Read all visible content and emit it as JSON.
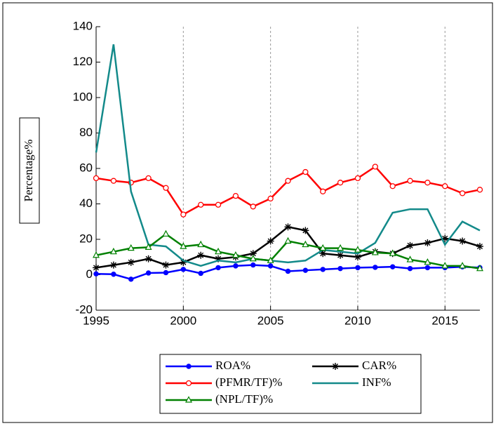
{
  "chart_data": {
    "type": "line",
    "y_label": "Percentage%",
    "x": [
      1995,
      1996,
      1997,
      1998,
      1999,
      2000,
      2001,
      2002,
      2003,
      2004,
      2005,
      2006,
      2007,
      2008,
      2009,
      2010,
      2011,
      2012,
      2013,
      2014,
      2015,
      2016,
      2017
    ],
    "xlim": [
      1995,
      2017
    ],
    "xticks": [
      1995,
      2000,
      2005,
      2010,
      2015
    ],
    "ylim": [
      -20,
      140
    ],
    "yticks": [
      -20,
      0,
      20,
      40,
      60,
      80,
      100,
      120,
      140
    ],
    "grid": "x-dotted",
    "legend": "bottom",
    "series": [
      {
        "name": "ROA%",
        "color": "#0000ff",
        "marker": "filled-circle",
        "values": [
          0.5,
          0.3,
          -2.5,
          1,
          1.2,
          3,
          0.8,
          4,
          5,
          5.5,
          5,
          2,
          2.5,
          3,
          3.5,
          4,
          4.2,
          4.5,
          3.5,
          4,
          4,
          4.5,
          4
        ]
      },
      {
        "name": "CAR%",
        "color": "#000000",
        "marker": "asterisk",
        "values": [
          4,
          5.5,
          7,
          9,
          5.5,
          7,
          11,
          9,
          10,
          12,
          19,
          27,
          25,
          12,
          11,
          10,
          13,
          12,
          16.5,
          18,
          20.5,
          19,
          16
        ]
      },
      {
        "name": "(PFMR/TF)%",
        "color": "#ff0000",
        "marker": "open-circle",
        "values": [
          54.5,
          53,
          52,
          54.5,
          49,
          34,
          39.5,
          39.5,
          44.5,
          38.5,
          43,
          53,
          58,
          47,
          52,
          54.5,
          61,
          50,
          53,
          52,
          50,
          46,
          48
        ]
      },
      {
        "name": "INF%",
        "color": "#138a8a",
        "marker": "none",
        "values": [
          69,
          130,
          47,
          17,
          16,
          8,
          5,
          8,
          7,
          9,
          8,
          7,
          8,
          14,
          13,
          12,
          18,
          35,
          37,
          37,
          17,
          30,
          25
        ]
      },
      {
        "name": "(NPL/TF)%",
        "color": "#008000",
        "marker": "open-triangle",
        "values": [
          11,
          13,
          15,
          15.5,
          23,
          16,
          17,
          13,
          11,
          9,
          8,
          19,
          17,
          15,
          15,
          14,
          12.5,
          12,
          8.5,
          7,
          5,
          5,
          3.5
        ]
      }
    ]
  }
}
